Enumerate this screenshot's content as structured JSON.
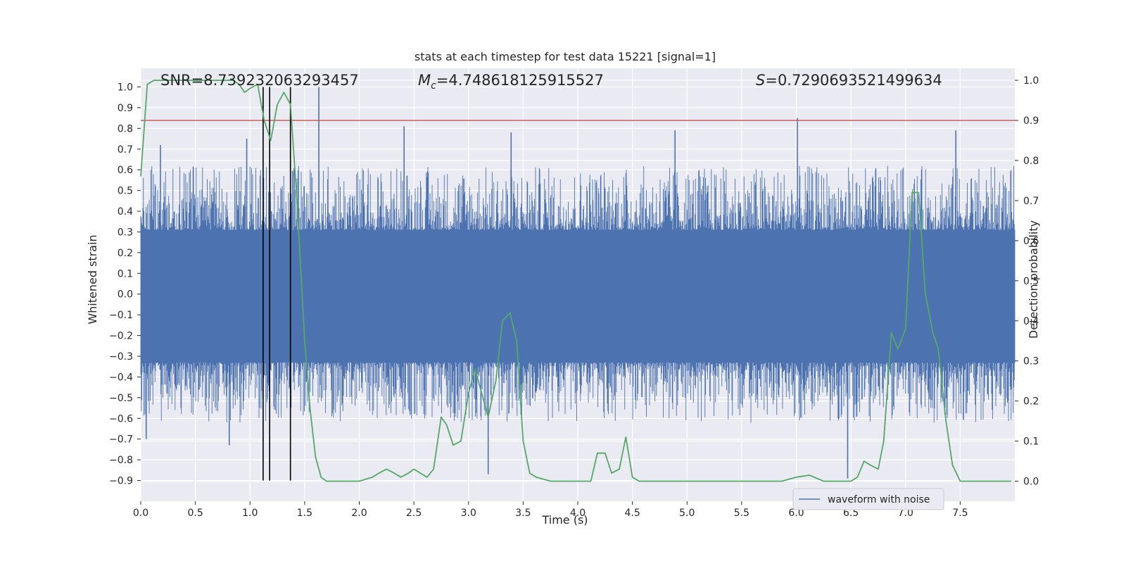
{
  "title": "stats at each timestep for test data 15221 [signal=1]",
  "chart_data": {
    "type": "line",
    "title": "stats at each timestep for test data 15221 [signal=1]",
    "xlabel": "Time (s)",
    "ylabel": "Whitened strain",
    "y2label": "Detection probability",
    "xlim": [
      0.0,
      8.0
    ],
    "ylim": [
      -1.0,
      1.09
    ],
    "y2lim": [
      -0.05,
      1.03
    ],
    "x_ticks": [
      0.0,
      0.5,
      1.0,
      1.5,
      2.0,
      2.5,
      3.0,
      3.5,
      4.0,
      4.5,
      5.0,
      5.5,
      6.0,
      6.5,
      7.0,
      7.5
    ],
    "x_tick_labels": [
      "0.0",
      "0.5",
      "1.0",
      "1.5",
      "2.0",
      "2.5",
      "3.0",
      "3.5",
      "4.0",
      "4.5",
      "5.0",
      "5.5",
      "6.0",
      "6.5",
      "7.0",
      "7.5"
    ],
    "y_ticks": [
      1.0,
      0.9,
      0.8,
      0.7,
      0.6,
      0.5,
      0.4,
      0.3,
      0.2,
      0.1,
      0.0,
      -0.1,
      -0.2,
      -0.3,
      -0.4,
      -0.5,
      -0.6,
      -0.7,
      -0.8,
      -0.9
    ],
    "y_tick_labels": [
      "1.0",
      "0.9",
      "0.8",
      "0.7",
      "0.6",
      "0.5",
      "0.4",
      "0.3",
      "0.2",
      "0.1",
      "0.0",
      "−0.1",
      "−0.2",
      "−0.3",
      "−0.4",
      "−0.5",
      "−0.6",
      "−0.7",
      "−0.8",
      "−0.9"
    ],
    "y2_ticks": [
      1.0,
      0.9,
      0.8,
      0.7,
      0.6,
      0.5,
      0.4,
      0.3,
      0.2,
      0.1,
      0.0
    ],
    "y2_tick_labels": [
      "1.0",
      "0.9",
      "0.8",
      "0.7",
      "0.6",
      "0.5",
      "0.4",
      "0.3",
      "0.2",
      "0.1",
      "0.0"
    ],
    "grid": true,
    "legend_position": "bottom-right",
    "annotations": {
      "snr": "SNR=8.739232063293457",
      "mc_symbol": "M",
      "mc_subscript": "c",
      "mc_value": "=4.748618125915527",
      "s_symbol": "S",
      "s_value": "=0.7290693521499634"
    },
    "series": [
      {
        "name": "waveform with noise",
        "kind": "noisy-waveform",
        "color": "#4c72b0",
        "dense_band": [
          -0.33,
          0.31
        ],
        "envelope_typical": [
          -0.62,
          0.62
        ],
        "extremes": [
          {
            "x": 1.63,
            "y": 1.0
          },
          {
            "x": 6.01,
            "y": 0.85
          },
          {
            "x": 2.41,
            "y": 0.81
          },
          {
            "x": 4.89,
            "y": 0.79
          },
          {
            "x": 7.46,
            "y": 0.79
          },
          {
            "x": 3.39,
            "y": 0.78
          },
          {
            "x": 0.18,
            "y": 0.72
          },
          {
            "x": 0.97,
            "y": 0.75
          },
          {
            "x": 6.47,
            "y": -0.89
          },
          {
            "x": 3.18,
            "y": -0.87
          },
          {
            "x": 0.81,
            "y": -0.73
          },
          {
            "x": 0.05,
            "y": -0.7
          }
        ]
      },
      {
        "name": "detection probability",
        "kind": "probability",
        "axis": "right",
        "color": "#55a868",
        "x": [
          0.0,
          0.06,
          0.12,
          0.2,
          0.3,
          0.5,
          0.7,
          0.85,
          0.9,
          0.95,
          1.0,
          1.07,
          1.13,
          1.19,
          1.25,
          1.31,
          1.37,
          1.43,
          1.5,
          1.55,
          1.6,
          1.65,
          1.7,
          1.8,
          2.0,
          2.12,
          2.18,
          2.25,
          2.32,
          2.38,
          2.45,
          2.5,
          2.56,
          2.62,
          2.68,
          2.75,
          2.8,
          2.86,
          2.93,
          3.0,
          3.06,
          3.12,
          3.18,
          3.25,
          3.31,
          3.38,
          3.44,
          3.5,
          3.56,
          3.62,
          3.75,
          3.87,
          4.0,
          4.12,
          4.18,
          4.25,
          4.31,
          4.38,
          4.44,
          4.5,
          4.56,
          4.62,
          4.75,
          5.0,
          5.25,
          5.5,
          5.62,
          5.75,
          5.87,
          6.0,
          6.12,
          6.25,
          6.5,
          6.56,
          6.62,
          6.68,
          6.75,
          6.8,
          6.87,
          6.93,
          7.0,
          7.06,
          7.12,
          7.18,
          7.25,
          7.3,
          7.37,
          7.43,
          7.5,
          7.75,
          7.97
        ],
        "y": [
          0.76,
          0.99,
          1.0,
          1.0,
          1.0,
          1.0,
          1.0,
          1.0,
          0.99,
          0.97,
          0.98,
          0.99,
          0.9,
          0.85,
          0.94,
          0.97,
          0.94,
          0.7,
          0.35,
          0.18,
          0.06,
          0.01,
          0.0,
          0.0,
          0.0,
          0.01,
          0.02,
          0.03,
          0.02,
          0.01,
          0.02,
          0.03,
          0.02,
          0.01,
          0.03,
          0.16,
          0.14,
          0.09,
          0.1,
          0.22,
          0.28,
          0.22,
          0.16,
          0.25,
          0.4,
          0.42,
          0.35,
          0.1,
          0.02,
          0.01,
          0.0,
          0.0,
          0.0,
          0.0,
          0.07,
          0.07,
          0.02,
          0.03,
          0.11,
          0.01,
          0.0,
          0.0,
          0.0,
          0.0,
          0.0,
          0.0,
          0.0,
          0.0,
          0.0,
          0.01,
          0.015,
          0.0,
          0.0,
          0.01,
          0.05,
          0.04,
          0.03,
          0.1,
          0.37,
          0.33,
          0.38,
          0.72,
          0.72,
          0.47,
          0.37,
          0.33,
          0.15,
          0.04,
          0.0,
          0.0,
          0.0
        ]
      }
    ],
    "threshold": {
      "axis": "right",
      "value": 0.9,
      "color": "#c44e52"
    },
    "vertical_markers": {
      "x": [
        1.12,
        1.18,
        1.37
      ],
      "y_range": [
        -0.9,
        1.0
      ],
      "color": "#000000"
    }
  }
}
